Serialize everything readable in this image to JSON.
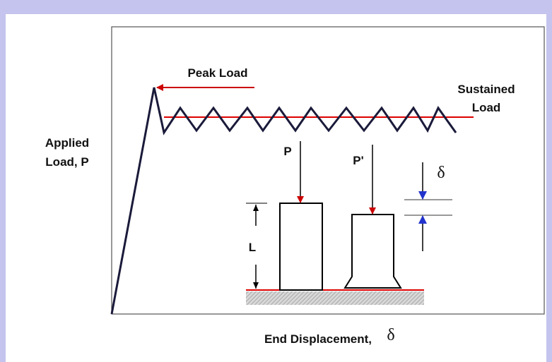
{
  "labels": {
    "peak_load": "Peak Load",
    "sustained_load": [
      "Sustained",
      "Load"
    ],
    "applied_load": [
      "Applied",
      "Load, P"
    ],
    "p": "P",
    "p_prime": "P'",
    "delta": "δ",
    "length": "L",
    "x_axis": "End Displacement,",
    "x_axis_symbol": "δ"
  }
}
